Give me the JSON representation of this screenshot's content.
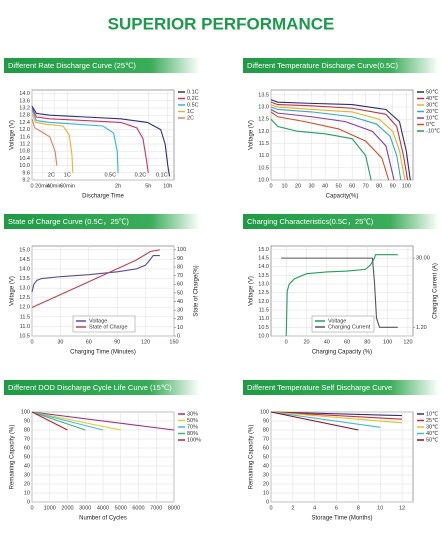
{
  "header": {
    "title": "SUPERIOR PERFORMANCE"
  },
  "chart_data": [
    {
      "type": "line",
      "title": "Different Rate Discharge Curve (25℃)",
      "xlabel": "Discharge Time",
      "ylabel": "Voltage (V)",
      "xlim": [
        0,
        160
      ],
      "ylim": [
        9.2,
        14.2
      ],
      "grid": true,
      "legend": "right",
      "curve_labels": true,
      "xticks": [
        0,
        {
          "value": 12,
          "label": "20min"
        },
        {
          "value": 25,
          "label": "40min"
        },
        {
          "value": 40,
          "label": "60min"
        },
        {
          "value": 97,
          "label": "2h"
        },
        {
          "value": 131,
          "label": "5h"
        },
        {
          "value": 153,
          "label": "10h"
        }
      ],
      "yticks": [
        9.2,
        9.6,
        {
          "value": 10,
          "label": "10.0"
        },
        10.4,
        10.8,
        11.2,
        11.6,
        {
          "value": 12,
          "label": "12.0"
        },
        12.4,
        12.8,
        13.2,
        13.6,
        {
          "value": 14,
          "label": "14.0"
        }
      ],
      "series": [
        {
          "name": "0.1C",
          "color": "#2e2a8a",
          "x": [
            0,
            5,
            20,
            60,
            100,
            130,
            145,
            150,
            153,
            155
          ],
          "values": [
            13.3,
            12.9,
            12.8,
            12.7,
            12.6,
            12.4,
            12.0,
            11.2,
            10.0,
            9.4
          ]
        },
        {
          "name": "0.2C",
          "color": "#d0306a",
          "x": [
            0,
            5,
            20,
            60,
            100,
            118,
            125,
            129,
            131
          ],
          "values": [
            13.2,
            12.7,
            12.6,
            12.5,
            12.4,
            12.1,
            11.5,
            10.3,
            9.6
          ]
        },
        {
          "name": "0.5C",
          "color": "#30b8d0",
          "x": [
            0,
            5,
            20,
            50,
            80,
            92,
            96,
            97
          ],
          "values": [
            13.1,
            12.5,
            12.4,
            12.3,
            12.2,
            11.8,
            10.8,
            9.6
          ]
        },
        {
          "name": "1C",
          "color": "#f0b030",
          "x": [
            0,
            4,
            15,
            35,
            42,
            45,
            46
          ],
          "values": [
            12.9,
            12.4,
            12.3,
            12.2,
            11.7,
            10.6,
            9.6
          ]
        },
        {
          "name": "2C",
          "color": "#e08060",
          "x": [
            0,
            3,
            10,
            20,
            26,
            28
          ],
          "values": [
            12.6,
            12.1,
            11.9,
            11.6,
            10.8,
            10.0
          ]
        }
      ]
    },
    {
      "type": "line",
      "title": "Different Temperature Discharge Curve(0.5C)",
      "xlabel": "Capacity(%)",
      "ylabel": "Voltage (V)",
      "xlim": [
        0,
        105
      ],
      "ylim": [
        10,
        13.7
      ],
      "grid": true,
      "legend": "right",
      "xticks": [
        0,
        10,
        20,
        30,
        40,
        50,
        60,
        70,
        80,
        90,
        100
      ],
      "yticks": [
        {
          "value": 10,
          "label": "10.0"
        },
        10.5,
        {
          "value": 11,
          "label": "11.0"
        },
        11.5,
        {
          "value": 12,
          "label": "12.0"
        },
        12.5,
        {
          "value": 13,
          "label": "13.0"
        },
        13.5
      ],
      "series": [
        {
          "name": "50℃",
          "color": "#2a2a7a",
          "x": [
            0,
            5,
            30,
            60,
            85,
            95,
            100,
            103
          ],
          "values": [
            13.3,
            13.2,
            13.15,
            13.1,
            12.9,
            12.4,
            11.2,
            10.0
          ]
        },
        {
          "name": "40℃",
          "color": "#c03040",
          "x": [
            0,
            5,
            30,
            60,
            85,
            93,
            98,
            101
          ],
          "values": [
            13.2,
            13.1,
            13.05,
            12.95,
            12.7,
            12.2,
            11.0,
            10.0
          ]
        },
        {
          "name": "30℃",
          "color": "#e8b020",
          "x": [
            0,
            5,
            30,
            60,
            80,
            90,
            95,
            99
          ],
          "values": [
            13.1,
            13.0,
            12.9,
            12.8,
            12.5,
            12.0,
            11.2,
            10.0
          ]
        },
        {
          "name": "20℃",
          "color": "#30a8d0",
          "x": [
            0,
            5,
            30,
            60,
            78,
            88,
            93,
            96
          ],
          "values": [
            13.0,
            12.9,
            12.8,
            12.6,
            12.3,
            11.8,
            11.0,
            10.0
          ]
        },
        {
          "name": "10℃",
          "color": "#8040a0",
          "x": [
            0,
            5,
            30,
            55,
            75,
            85,
            91
          ],
          "values": [
            12.9,
            12.75,
            12.6,
            12.4,
            12.0,
            11.4,
            10.0
          ]
        },
        {
          "name": "0℃",
          "color": "#d05020",
          "x": [
            0,
            5,
            25,
            50,
            70,
            82,
            87
          ],
          "values": [
            12.8,
            12.6,
            12.4,
            12.1,
            11.6,
            10.9,
            10.0
          ]
        },
        {
          "name": "-10℃",
          "color": "#20a060",
          "x": [
            0,
            5,
            20,
            40,
            60,
            70,
            74
          ],
          "values": [
            12.5,
            12.2,
            12.0,
            11.9,
            11.7,
            11.0,
            10.0
          ]
        }
      ]
    },
    {
      "type": "line",
      "title": "State of Charge Curve (0.5C，25℃)",
      "xlabel": "Charging Time (Minutes)",
      "ylabel": "Voltage (V)",
      "y2label": "State of Charge(%)",
      "xlim": [
        0,
        150
      ],
      "ylim": [
        10.5,
        15.2
      ],
      "y2lim": [
        0,
        104.4
      ],
      "grid": true,
      "legend": "lower center",
      "xticks": [
        0,
        30,
        60,
        90,
        120,
        150
      ],
      "yticks": [
        10.5,
        {
          "value": 11,
          "label": "11.0"
        },
        11.5,
        {
          "value": 12,
          "label": "12.0"
        },
        12.5,
        {
          "value": 13,
          "label": "13.0"
        },
        13.5,
        {
          "value": 14,
          "label": "14.0"
        },
        14.5,
        {
          "value": 15,
          "label": "15.0"
        }
      ],
      "y2ticks": [
        0,
        10,
        20,
        30,
        40,
        50,
        60,
        70,
        80,
        90,
        100
      ],
      "series": [
        {
          "name": "Voltage",
          "color": "#5a4aa8",
          "x": [
            0,
            2,
            5,
            10,
            30,
            60,
            90,
            110,
            120,
            125,
            128,
            135
          ],
          "values": [
            12.8,
            13.2,
            13.4,
            13.5,
            13.6,
            13.7,
            13.85,
            14.0,
            14.2,
            14.5,
            14.7,
            14.7
          ]
        },
        {
          "name": "State of Charge",
          "color": "#c04050",
          "axis": "y2",
          "x": [
            0,
            30,
            60,
            90,
            110,
            125,
            135
          ],
          "values": [
            33,
            48,
            63,
            78,
            88,
            98,
            100
          ]
        }
      ]
    },
    {
      "type": "line",
      "title": "Charging Characteristics(0.5C，25℃)",
      "xlabel": "Charging Capacity (%)",
      "ylabel": "Voltage (V)",
      "y2label": "Charging Current (A)",
      "xlim": [
        -15,
        125
      ],
      "ylim": [
        10,
        15.2
      ],
      "y2lim": [
        -2.4,
        35.04
      ],
      "grid": true,
      "legend": "lower center",
      "xticks": [
        0,
        20,
        40,
        60,
        80,
        100,
        120
      ],
      "yticks": [
        {
          "value": 10,
          "label": "10.0"
        },
        10.5,
        {
          "value": 11,
          "label": "11.0"
        },
        11.5,
        {
          "value": 12,
          "label": "12.0"
        },
        12.5,
        {
          "value": 13,
          "label": "13.0"
        },
        13.5,
        {
          "value": 14,
          "label": "14.0"
        },
        14.5,
        {
          "value": 15,
          "label": "15.0"
        }
      ],
      "y2ticks": [
        {
          "value": 1.2,
          "label": "1.20"
        },
        {
          "value": 30,
          "label": "30.00"
        }
      ],
      "series": [
        {
          "name": "Voltage",
          "color": "#20a060",
          "x": [
            0,
            1,
            3,
            8,
            20,
            40,
            60,
            78,
            83,
            87,
            88,
            110
          ],
          "values": [
            10.0,
            12.6,
            13.0,
            13.3,
            13.6,
            13.7,
            13.75,
            13.85,
            14.1,
            14.5,
            14.7,
            14.7
          ]
        },
        {
          "name": "Charging Current",
          "color": "#555555",
          "axis": "y2",
          "x": [
            -5,
            85,
            87,
            89,
            92,
            110
          ],
          "values": [
            30,
            30,
            20,
            5,
            1.2,
            1.2
          ]
        }
      ]
    },
    {
      "type": "line",
      "title": "Different DOD Discharge Cycle Life Curve (15℃)",
      "xlabel": "Number of Cycles",
      "ylabel": "Remaining Capacity (%)",
      "xlim": [
        0,
        8000
      ],
      "ylim": [
        0,
        100
      ],
      "grid": true,
      "legend": "right",
      "xticks": [
        0,
        1000,
        2000,
        3000,
        4000,
        5000,
        6000,
        7000,
        8000
      ],
      "yticks": [
        0,
        10,
        20,
        30,
        40,
        50,
        60,
        70,
        80,
        90,
        100
      ],
      "series": [
        {
          "name": "30%",
          "color": "#a03080",
          "x": [
            0,
            8000
          ],
          "values": [
            100,
            80
          ]
        },
        {
          "name": "50%",
          "color": "#e0d020",
          "x": [
            0,
            5000
          ],
          "values": [
            100,
            80
          ]
        },
        {
          "name": "70%",
          "color": "#40c0e0",
          "x": [
            0,
            4000
          ],
          "values": [
            100,
            80
          ]
        },
        {
          "name": "80%",
          "color": "#40b080",
          "x": [
            0,
            3000
          ],
          "values": [
            100,
            80
          ]
        },
        {
          "name": "100%",
          "color": "#c02030",
          "x": [
            0,
            2000
          ],
          "values": [
            100,
            80
          ]
        }
      ]
    },
    {
      "type": "line",
      "title": "Different Temperature Self Discharge Curve",
      "xlabel": "Storage Time (Months)",
      "ylabel": "Remaining Capacity (%)",
      "xlim": [
        0,
        13
      ],
      "ylim": [
        0,
        100
      ],
      "grid": true,
      "legend": "right",
      "xticks": [
        0,
        2,
        4,
        6,
        8,
        10,
        12
      ],
      "yticks": [
        0,
        10,
        20,
        30,
        40,
        50,
        60,
        70,
        80,
        90,
        100
      ],
      "series": [
        {
          "name": "10℃",
          "color": "#3a2a70",
          "x": [
            0,
            12
          ],
          "values": [
            100,
            96
          ]
        },
        {
          "name": "25℃",
          "color": "#c03040",
          "x": [
            0,
            12
          ],
          "values": [
            100,
            92
          ]
        },
        {
          "name": "30℃",
          "color": "#e8c020",
          "x": [
            0,
            12
          ],
          "values": [
            100,
            88
          ]
        },
        {
          "name": "40℃",
          "color": "#40b8d8",
          "x": [
            0,
            10
          ],
          "values": [
            100,
            83
          ]
        },
        {
          "name": "50℃",
          "color": "#8a1020",
          "x": [
            0,
            8
          ],
          "values": [
            100,
            80
          ]
        }
      ]
    }
  ]
}
